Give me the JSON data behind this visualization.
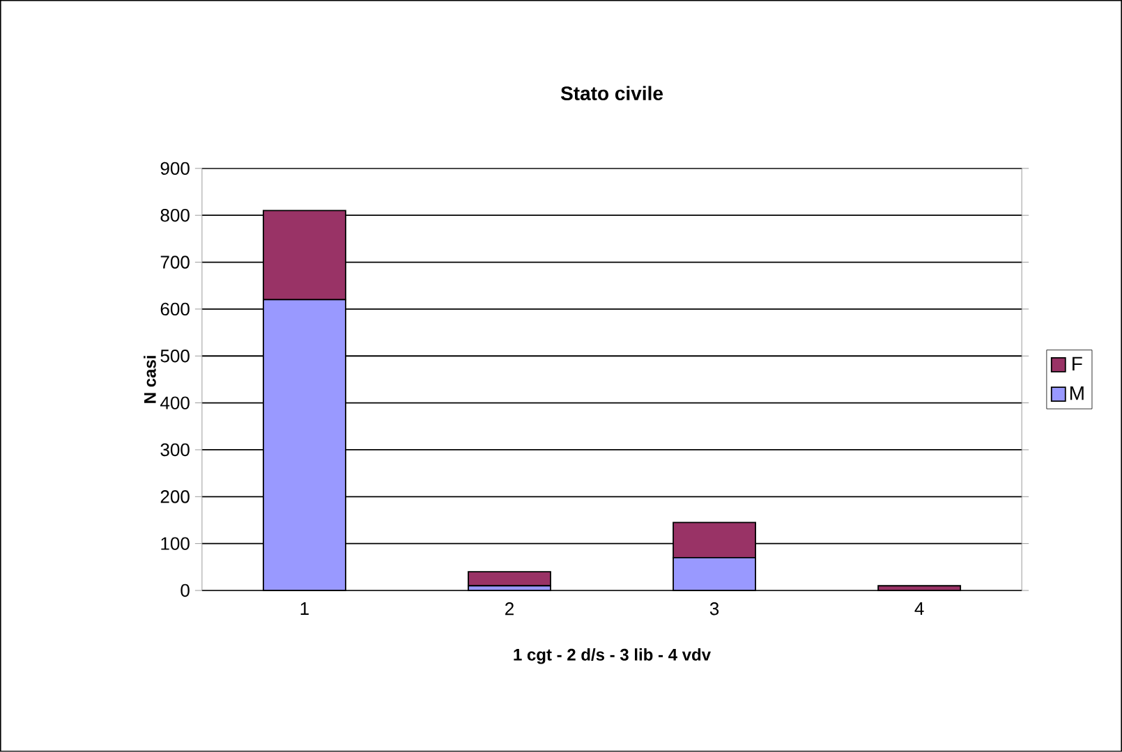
{
  "chart_data": {
    "type": "bar",
    "title": "Stato civile",
    "xlabel": "1 cgt - 2 d/s - 3 lib - 4 vdv",
    "ylabel": "N casi",
    "categories": [
      "1",
      "2",
      "3",
      "4"
    ],
    "stacked": true,
    "series": [
      {
        "name": "M",
        "color": "#9999ff",
        "values": [
          620,
          10,
          70,
          0
        ]
      },
      {
        "name": "F",
        "color": "#993366",
        "values": [
          190,
          30,
          75,
          10
        ]
      }
    ],
    "ylim": [
      0,
      900
    ],
    "yticks": [
      0,
      100,
      200,
      300,
      400,
      500,
      600,
      700,
      800,
      900
    ],
    "grid": "y",
    "legend": "right"
  }
}
